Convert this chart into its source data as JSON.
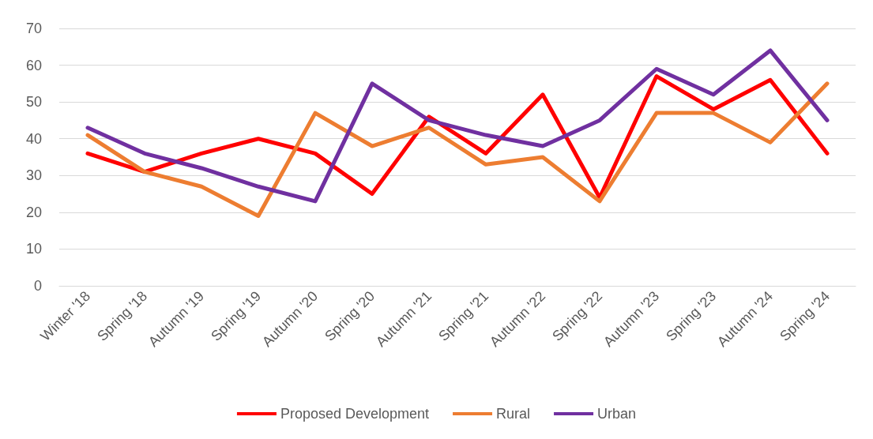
{
  "chart_data": {
    "type": "line",
    "categories": [
      "Winter '18",
      "Spring '18",
      "Autumn '19",
      "Spring '19",
      "Autumn '20",
      "Spring '20",
      "Autumn '21",
      "Spring '21",
      "Autumn '22",
      "Spring '22",
      "Autumn '23",
      "Spring '23",
      "Autumn '24",
      "Spring '24"
    ],
    "series": [
      {
        "name": "Proposed Development",
        "color": "#ff0000",
        "values": [
          36,
          31,
          36,
          40,
          36,
          25,
          46,
          36,
          52,
          24,
          57,
          48,
          56,
          36
        ]
      },
      {
        "name": "Rural",
        "color": "#ed7d31",
        "values": [
          41,
          31,
          27,
          19,
          47,
          38,
          43,
          33,
          35,
          23,
          47,
          47,
          39,
          55
        ]
      },
      {
        "name": "Urban",
        "color": "#7030a0",
        "values": [
          43,
          36,
          32,
          27,
          23,
          55,
          45,
          41,
          38,
          45,
          59,
          52,
          64,
          45
        ]
      }
    ],
    "ylim": [
      0,
      70
    ],
    "yticks": [
      0,
      10,
      20,
      30,
      40,
      50,
      60,
      70
    ],
    "grid": "y",
    "legend": "bottom",
    "marker": "none",
    "line_style": "solid"
  }
}
